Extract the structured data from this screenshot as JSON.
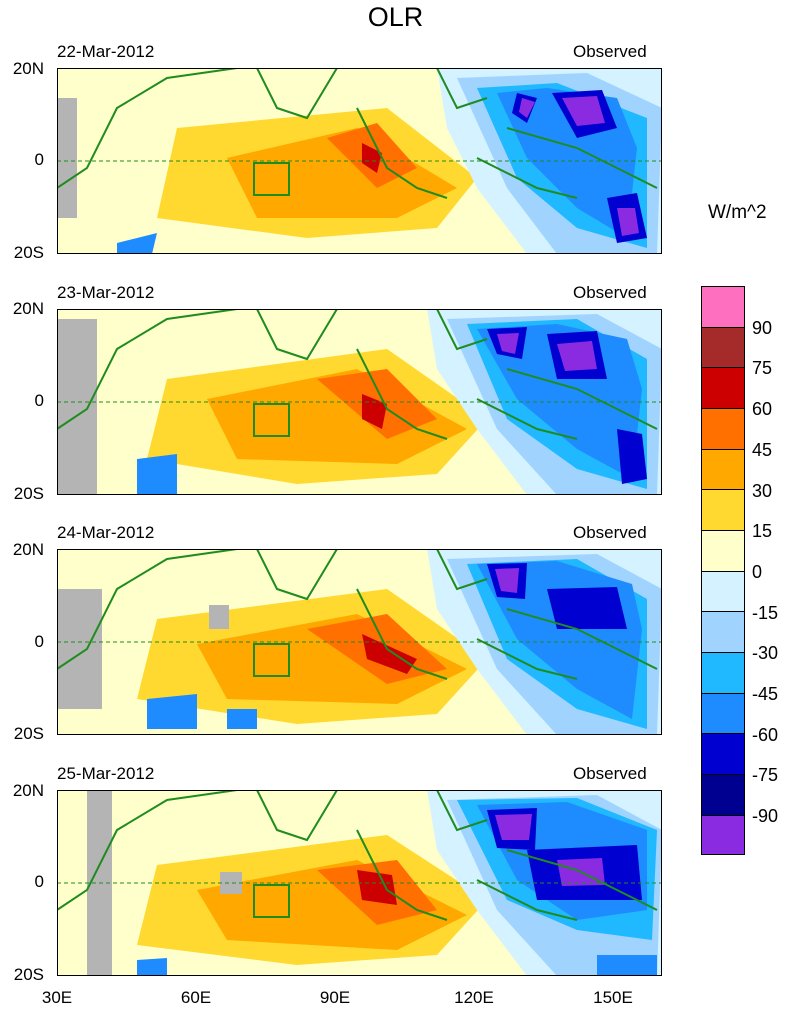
{
  "title": "OLR",
  "unit": "W/m^2",
  "panels": [
    {
      "date": "22-Mar-2012",
      "label": "Observed"
    },
    {
      "date": "23-Mar-2012",
      "label": "Observed"
    },
    {
      "date": "24-Mar-2012",
      "label": "Observed"
    },
    {
      "date": "25-Mar-2012",
      "label": "Observed"
    }
  ],
  "y_ticks": [
    "20N",
    "0",
    "20S"
  ],
  "x_ticks": [
    "30E",
    "60E",
    "90E",
    "120E",
    "150E"
  ],
  "colorbar": {
    "labels": [
      "90",
      "75",
      "60",
      "45",
      "30",
      "15",
      "0",
      "-15",
      "-30",
      "-45",
      "-60",
      "-75",
      "-90"
    ],
    "colors": [
      "#ff6fbf",
      "#a52a2a",
      "#cc0000",
      "#ff7000",
      "#ffa800",
      "#ffd930",
      "#ffffcc",
      "#d4f2ff",
      "#a0d4ff",
      "#20b8ff",
      "#1e8cff",
      "#0000d0",
      "#000090",
      "#8a2be2"
    ]
  },
  "map_colors": {
    "land_line": "#1f8c1f",
    "missing": "#b4b4b4"
  }
}
